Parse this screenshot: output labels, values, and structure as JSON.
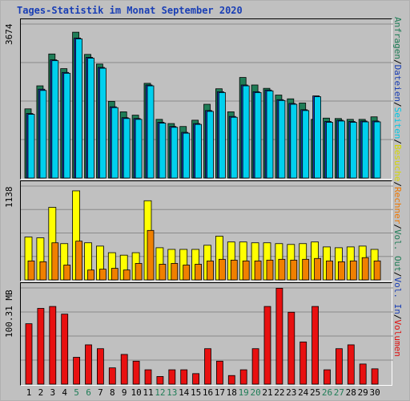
{
  "title": "Tages-Statistik im Monat September 2020",
  "legend": {
    "top": [
      {
        "label": "Anfragen",
        "color": "#1f7d57"
      },
      {
        "sep": " / "
      },
      {
        "label": "Dateien",
        "color": "#1a3fb5"
      },
      {
        "sep": " / "
      },
      {
        "label": "Seiten",
        "color": "#00c8e6"
      },
      {
        "sep": " / "
      },
      {
        "label": "Besuche",
        "color": "#d8d800"
      },
      {
        "sep": " / "
      },
      {
        "label": "Rechner",
        "color": "#f07800"
      },
      {
        "sep": " / "
      },
      {
        "label": "Vol. Out",
        "color": "#1f7d57"
      },
      {
        "sep": " / "
      },
      {
        "label": "Vol. In",
        "color": "#1a3fb5"
      },
      {
        "sep": " / "
      },
      {
        "label": "Volumen",
        "color": "#e01010"
      }
    ],
    "separator_color": "#000000"
  },
  "chart_data": [
    {
      "type": "bar",
      "panel": "hits",
      "ymax_label": "3674",
      "ylim": [
        0,
        3674
      ],
      "categories": [
        "1",
        "2",
        "3",
        "4",
        "5",
        "6",
        "7",
        "8",
        "9",
        "10",
        "11",
        "12",
        "13",
        "14",
        "15",
        "16",
        "17",
        "18",
        "19",
        "20",
        "21",
        "22",
        "23",
        "24",
        "25",
        "26",
        "27",
        "28",
        "29",
        "30"
      ],
      "weekend_days": [
        "5",
        "6",
        "12",
        "13",
        "19",
        "20",
        "26",
        "27"
      ],
      "series": [
        {
          "name": "Anfragen",
          "color": "#1f7d57",
          "values": [
            1650,
            2200,
            2960,
            2610,
            3480,
            2950,
            2720,
            1830,
            1580,
            1500,
            2260,
            1400,
            1300,
            1230,
            1380,
            1760,
            2130,
            1580,
            2400,
            2220,
            2140,
            1980,
            1890,
            1790,
            1400,
            1430,
            1420,
            1400,
            1400,
            1460
          ]
        },
        {
          "name": "Dateien",
          "color": "#1a3fb5",
          "values": [
            1540,
            2120,
            2820,
            2520,
            3340,
            2880,
            2640,
            1700,
            1440,
            1420,
            2220,
            1330,
            1230,
            1090,
            1300,
            1610,
            2060,
            1470,
            2220,
            2060,
            2100,
            1870,
            1780,
            1630,
            1960,
            1350,
            1380,
            1350,
            1360,
            1360
          ]
        },
        {
          "name": "Seiten",
          "color": "#00d0ee",
          "values": [
            1520,
            2090,
            2800,
            2500,
            3320,
            2860,
            2620,
            1680,
            1420,
            1400,
            2200,
            1310,
            1210,
            1070,
            1280,
            1590,
            2040,
            1450,
            2200,
            2040,
            2080,
            1850,
            1760,
            1610,
            1940,
            1330,
            1360,
            1330,
            1340,
            1340
          ]
        }
      ]
    },
    {
      "type": "bar",
      "panel": "visits",
      "ymax_label": "1138",
      "ylim": [
        0,
        1138
      ],
      "categories": [
        "1",
        "2",
        "3",
        "4",
        "5",
        "6",
        "7",
        "8",
        "9",
        "10",
        "11",
        "12",
        "13",
        "14",
        "15",
        "16",
        "17",
        "18",
        "19",
        "20",
        "21",
        "22",
        "23",
        "24",
        "25",
        "26",
        "27",
        "28",
        "29",
        "30"
      ],
      "series": [
        {
          "name": "Besuche",
          "color": "#ffff00",
          "values": [
            520,
            510,
            880,
            440,
            1080,
            450,
            410,
            330,
            300,
            330,
            960,
            390,
            370,
            370,
            370,
            420,
            530,
            460,
            460,
            450,
            450,
            440,
            430,
            440,
            460,
            400,
            390,
            400,
            410,
            370
          ]
        },
        {
          "name": "Rechner",
          "color": "#f08000",
          "values": [
            230,
            220,
            450,
            180,
            470,
            120,
            130,
            140,
            120,
            200,
            600,
            190,
            200,
            180,
            190,
            230,
            250,
            240,
            230,
            230,
            240,
            250,
            240,
            250,
            260,
            230,
            220,
            230,
            270,
            230
          ]
        }
      ]
    },
    {
      "type": "bar",
      "panel": "volume",
      "ymax_label": "100.31 MB",
      "ylim": [
        0,
        100.31
      ],
      "categories": [
        "1",
        "2",
        "3",
        "4",
        "5",
        "6",
        "7",
        "8",
        "9",
        "10",
        "11",
        "12",
        "13",
        "14",
        "15",
        "16",
        "17",
        "18",
        "19",
        "20",
        "21",
        "22",
        "23",
        "24",
        "25",
        "26",
        "27",
        "28",
        "29",
        "30"
      ],
      "series": [
        {
          "name": "Volumen",
          "color": "#e81010",
          "values": [
            63,
            79,
            81,
            73,
            28,
            41,
            37,
            17,
            31,
            24,
            15,
            8,
            15,
            15,
            11,
            37,
            24,
            9,
            15,
            37,
            81,
            100,
            75,
            44,
            81,
            15,
            37,
            41,
            21,
            16
          ]
        }
      ]
    }
  ]
}
